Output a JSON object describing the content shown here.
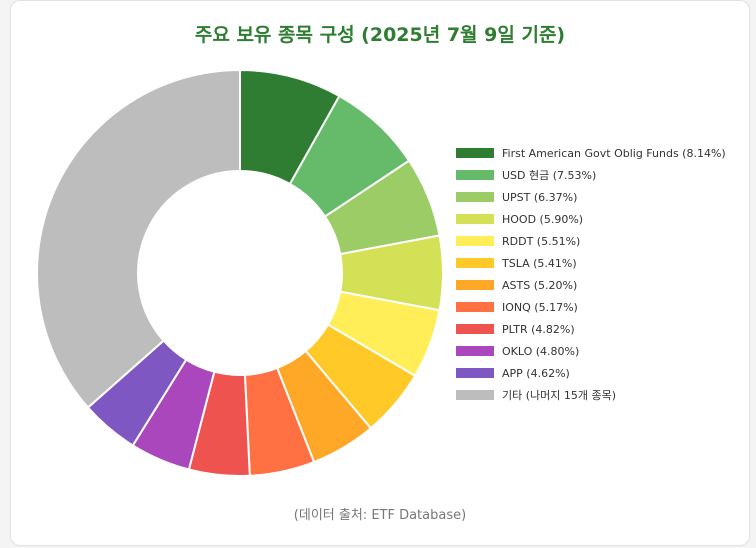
{
  "chart_data": {
    "type": "pie",
    "title": "주요 보유 종목 구성 (2025년 7월 9일 기준)",
    "source_note": "(데이터 출처: ETF Database)",
    "legend_position": "right",
    "slices": [
      {
        "label": "First American Govt Oblig Funds (8.14%)",
        "value": 8.14,
        "color": "#2e7d32"
      },
      {
        "label": "USD 현금 (7.53%)",
        "value": 7.53,
        "color": "#66bb6a"
      },
      {
        "label": "UPST (6.37%)",
        "value": 6.37,
        "color": "#9ccc65"
      },
      {
        "label": "HOOD (5.90%)",
        "value": 5.9,
        "color": "#d4e157"
      },
      {
        "label": "RDDT (5.51%)",
        "value": 5.51,
        "color": "#ffee58"
      },
      {
        "label": "TSLA (5.41%)",
        "value": 5.41,
        "color": "#ffca28"
      },
      {
        "label": "ASTS (5.20%)",
        "value": 5.2,
        "color": "#ffa726"
      },
      {
        "label": "IONQ (5.17%)",
        "value": 5.17,
        "color": "#ff7043"
      },
      {
        "label": "PLTR (4.82%)",
        "value": 4.82,
        "color": "#ef5350"
      },
      {
        "label": "OKLO (4.80%)",
        "value": 4.8,
        "color": "#ab47bc"
      },
      {
        "label": "APP (4.62%)",
        "value": 4.62,
        "color": "#7e57c2"
      },
      {
        "label": "기타 (나머지 15개 종목)",
        "value": 36.53,
        "color": "#bdbdbd"
      }
    ]
  }
}
